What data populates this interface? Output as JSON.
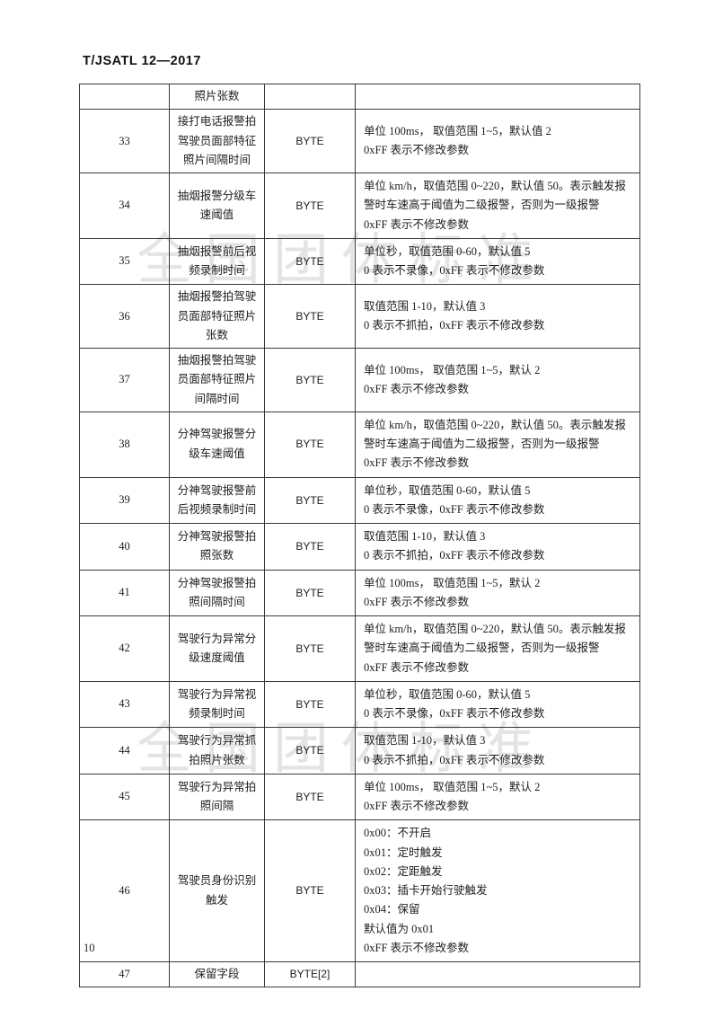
{
  "page": {
    "header": "T/JSATL 12—2017",
    "page_number": "10",
    "watermark": "全国团体标准"
  },
  "table": {
    "rows": [
      {
        "num": "",
        "name": "照片张数",
        "type": "",
        "desc": []
      },
      {
        "num": "33",
        "name": "接打电话报警拍驾驶员面部特征照片间隔时间",
        "type": "BYTE",
        "desc": [
          "单位 100ms， 取值范围 1~5，默认值 2",
          "0xFF 表示不修改参数"
        ]
      },
      {
        "num": "34",
        "name": "抽烟报警分级车速阈值",
        "type": "BYTE",
        "desc": [
          "单位 km/h，取值范围 0~220，默认值 50。表示触发报警时车速高于阈值为二级报警，否则为一级报警",
          "0xFF  表示不修改参数"
        ]
      },
      {
        "num": "35",
        "name": "抽烟报警前后视频录制时间",
        "type": "BYTE",
        "desc": [
          "单位秒，取值范围 0-60，默认值 5",
          "0 表示不录像，0xFF 表示不修改参数"
        ]
      },
      {
        "num": "36",
        "name": "抽烟报警拍驾驶员面部特征照片张数",
        "type": "BYTE",
        "desc": [
          "取值范围 1-10，默认值 3",
          "0 表示不抓拍，0xFF 表示不修改参数"
        ]
      },
      {
        "num": "37",
        "name": "抽烟报警拍驾驶员面部特征照片间隔时间",
        "type": "BYTE",
        "desc": [
          "单位 100ms， 取值范围 1~5，默认 2",
          "0xFF 表示不修改参数"
        ]
      },
      {
        "num": "38",
        "name": "分神驾驶报警分级车速阈值",
        "type": "BYTE",
        "desc": [
          "单位 km/h，取值范围 0~220，默认值 50。表示触发报警时车速高于阈值为二级报警，否则为一级报警",
          "0xFF  表示不修改参数"
        ]
      },
      {
        "num": "39",
        "name": "分神驾驶报警前后视频录制时间",
        "type": "BYTE",
        "desc": [
          "单位秒，取值范围 0-60，默认值 5",
          "0 表示不录像，0xFF 表示不修改参数"
        ]
      },
      {
        "num": "40",
        "name": "分神驾驶报警拍照张数",
        "type": "BYTE",
        "desc": [
          "取值范围 1-10，默认值 3",
          "0 表示不抓拍，0xFF 表示不修改参数"
        ]
      },
      {
        "num": "41",
        "name": "分神驾驶报警拍照间隔时间",
        "type": "BYTE",
        "desc": [
          "单位 100ms， 取值范围 1~5，默认 2",
          "0xFF 表示不修改参数"
        ]
      },
      {
        "num": "42",
        "name": "驾驶行为异常分级速度阈值",
        "type": "BYTE",
        "desc": [
          "单位 km/h，取值范围 0~220，默认值 50。表示触发报警时车速高于阈值为二级报警，否则为一级报警",
          "0xFF  表示不修改参数"
        ]
      },
      {
        "num": "43",
        "name": "驾驶行为异常视频录制时间",
        "type": "BYTE",
        "desc": [
          "单位秒，取值范围 0-60，默认值 5",
          "0 表示不录像，0xFF 表示不修改参数"
        ]
      },
      {
        "num": "44",
        "name": "驾驶行为异常抓拍照片张数",
        "type": "BYTE",
        "desc": [
          "取值范围 1-10，默认值 3",
          "0 表示不抓拍，0xFF 表示不修改参数"
        ]
      },
      {
        "num": "45",
        "name": "驾驶行为异常拍照间隔",
        "type": "BYTE",
        "desc": [
          "单位 100ms， 取值范围 1~5，默认 2",
          "0xFF 表示不修改参数"
        ]
      },
      {
        "num": "46",
        "name": "驾驶员身份识别触发",
        "type": "BYTE",
        "desc": [
          "0x00：不开启",
          "0x01：定时触发",
          "0x02：定距触发",
          "0x03：插卡开始行驶触发",
          "0x04：保留",
          "默认值为 0x01",
          "0xFF 表示不修改参数"
        ]
      },
      {
        "num": "47",
        "name": "保留字段",
        "type": "BYTE[2]",
        "desc": []
      }
    ]
  }
}
